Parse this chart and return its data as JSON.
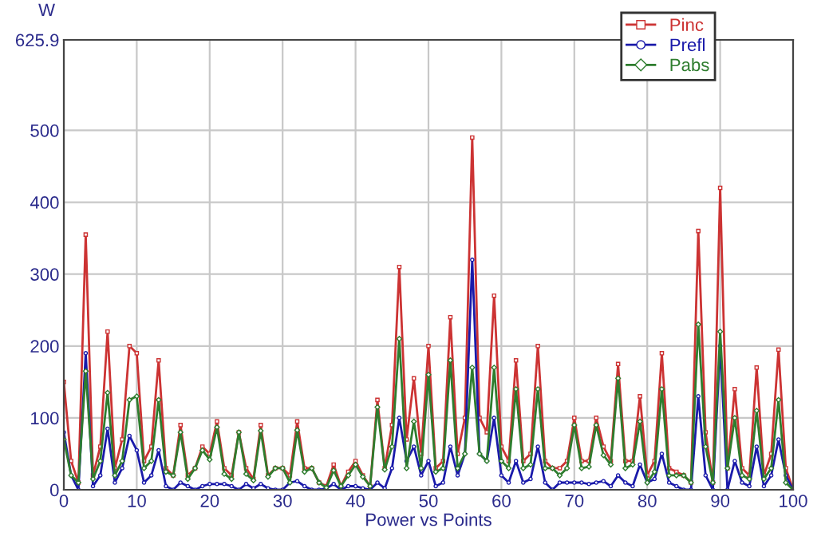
{
  "chart_data": {
    "type": "line",
    "xlabel": "Power vs Points",
    "ylabel": "W",
    "x": [
      0,
      1,
      2,
      3,
      4,
      5,
      6,
      7,
      8,
      9,
      10,
      11,
      12,
      13,
      14,
      15,
      16,
      17,
      18,
      19,
      20,
      21,
      22,
      23,
      24,
      25,
      26,
      27,
      28,
      29,
      30,
      31,
      32,
      33,
      34,
      35,
      36,
      37,
      38,
      39,
      40,
      41,
      42,
      43,
      44,
      45,
      46,
      47,
      48,
      49,
      50,
      51,
      52,
      53,
      54,
      55,
      56,
      57,
      58,
      59,
      60,
      61,
      62,
      63,
      64,
      65,
      66,
      67,
      68,
      69,
      70,
      71,
      72,
      73,
      74,
      75,
      76,
      77,
      78,
      79,
      80,
      81,
      82,
      83,
      84,
      85,
      86,
      87,
      88,
      89,
      90,
      91,
      92,
      93,
      94,
      95,
      96,
      97,
      98,
      99,
      100
    ],
    "series": [
      {
        "name": "Pinc",
        "color": "#cc3333",
        "marker": "square",
        "values": [
          150,
          40,
          10,
          355,
          20,
          60,
          220,
          30,
          70,
          200,
          190,
          40,
          60,
          180,
          30,
          20,
          90,
          20,
          30,
          60,
          50,
          95,
          30,
          20,
          80,
          30,
          15,
          90,
          20,
          30,
          30,
          20,
          95,
          30,
          30,
          10,
          5,
          35,
          5,
          25,
          40,
          20,
          5,
          125,
          30,
          90,
          310,
          70,
          155,
          50,
          200,
          30,
          40,
          240,
          50,
          100,
          490,
          100,
          80,
          270,
          60,
          40,
          180,
          40,
          50,
          200,
          40,
          30,
          30,
          40,
          100,
          40,
          40,
          100,
          60,
          40,
          175,
          40,
          40,
          130,
          20,
          40,
          190,
          30,
          25,
          20,
          10,
          360,
          80,
          10,
          420,
          30,
          140,
          30,
          20,
          170,
          20,
          50,
          195,
          30,
          0
        ]
      },
      {
        "name": "Prefl",
        "color": "#1a1aaa",
        "marker": "circle",
        "values": [
          80,
          20,
          0,
          190,
          5,
          20,
          85,
          10,
          30,
          75,
          55,
          10,
          20,
          55,
          5,
          0,
          10,
          5,
          0,
          5,
          8,
          8,
          8,
          5,
          0,
          8,
          2,
          8,
          2,
          0,
          0,
          10,
          12,
          5,
          0,
          0,
          2,
          8,
          0,
          5,
          5,
          2,
          0,
          10,
          2,
          30,
          100,
          40,
          60,
          20,
          40,
          5,
          10,
          60,
          20,
          50,
          320,
          50,
          40,
          100,
          20,
          10,
          40,
          10,
          15,
          60,
          10,
          0,
          10,
          10,
          10,
          10,
          8,
          10,
          12,
          5,
          20,
          10,
          5,
          35,
          10,
          15,
          50,
          10,
          5,
          0,
          0,
          130,
          20,
          0,
          200,
          0,
          40,
          10,
          5,
          60,
          5,
          20,
          70,
          20,
          0
        ]
      },
      {
        "name": "Pabs",
        "color": "#2e7d2e",
        "marker": "diamond",
        "values": [
          70,
          20,
          10,
          165,
          15,
          40,
          135,
          20,
          40,
          125,
          130,
          30,
          40,
          125,
          25,
          20,
          80,
          15,
          30,
          55,
          42,
          87,
          22,
          15,
          80,
          22,
          13,
          82,
          18,
          30,
          30,
          10,
          83,
          25,
          30,
          10,
          3,
          27,
          5,
          20,
          35,
          18,
          5,
          115,
          28,
          60,
          210,
          30,
          95,
          30,
          160,
          25,
          30,
          180,
          30,
          50,
          170,
          50,
          40,
          170,
          40,
          30,
          140,
          30,
          35,
          140,
          30,
          30,
          20,
          30,
          90,
          30,
          32,
          90,
          48,
          35,
          155,
          30,
          35,
          95,
          10,
          25,
          140,
          20,
          20,
          20,
          10,
          230,
          60,
          10,
          220,
          30,
          100,
          20,
          15,
          110,
          15,
          30,
          125,
          10,
          0
        ]
      }
    ],
    "xlim": [
      0,
      100
    ],
    "xticks": [
      0,
      10,
      20,
      30,
      40,
      50,
      60,
      70,
      80,
      90,
      100
    ],
    "ylim": [
      0,
      625.9
    ],
    "yticks": [
      0,
      100,
      200,
      300,
      400,
      500,
      625.9
    ],
    "grid": true,
    "legend": "top right",
    "line_style": "solid"
  }
}
